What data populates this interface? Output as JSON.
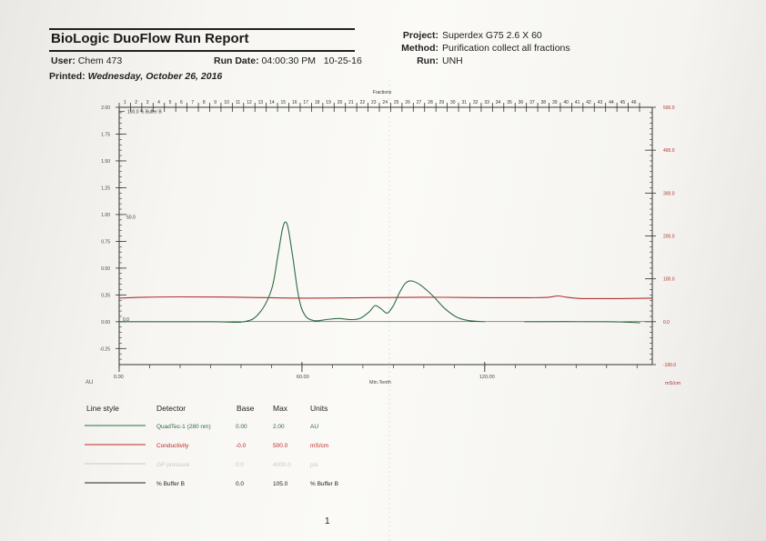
{
  "report": {
    "title": "BioLogic DuoFlow Run Report",
    "user_label": "User:",
    "user_value": "Chem 473",
    "run_date_label": "Run Date:",
    "run_date_value": "04:00:30 PM   10-25-16",
    "printed_label": "Printed:",
    "printed_value": "Wednesday, October 26, 2016",
    "project_label": "Project:",
    "project_value": "Superdex G75 2.6 X 60",
    "method_label": "Method:",
    "method_value": "Purification collect all fractions",
    "run_label": "Run:",
    "run_value": "UNH",
    "page_number": "1"
  },
  "chart_data": {
    "type": "line",
    "fractions_label": "Fractions",
    "fractions": [
      "1",
      "2",
      "3",
      "4",
      "5",
      "6",
      "7",
      "8",
      "9",
      "10",
      "11",
      "12",
      "13",
      "14",
      "15",
      "16",
      "17",
      "18",
      "19",
      "20",
      "21",
      "22",
      "23",
      "24",
      "25",
      "26",
      "27",
      "28",
      "29",
      "30",
      "31",
      "32",
      "33",
      "34",
      "35",
      "36",
      "37",
      "38",
      "39",
      "40",
      "41",
      "42",
      "43",
      "44",
      "45",
      "46"
    ],
    "xlabel": "Min.Tenth",
    "xlim": [
      0,
      175
    ],
    "x_ticks": [
      "0.00",
      "60.00",
      "120.00"
    ],
    "x_tick_values": [
      0,
      60,
      120
    ],
    "left_axis": {
      "unit": "AU",
      "ylim": [
        -0.4,
        2.0
      ],
      "ticks": [
        "-0.25",
        "0.00",
        "0.25",
        "0.50",
        "0.75",
        "1.00",
        "1.25",
        "1.50",
        "1.75",
        "2.00"
      ],
      "tick_values": [
        -0.25,
        0,
        0.25,
        0.5,
        0.75,
        1.0,
        1.25,
        1.5,
        1.75,
        2.0
      ]
    },
    "right_axis": {
      "unit": "mS/cm",
      "ylim": [
        -100,
        500
      ],
      "ticks": [
        "-100.0",
        "0.0",
        "100.0",
        "200.0",
        "300.0",
        "400.0",
        "500.0"
      ],
      "tick_values": [
        -100,
        0,
        100,
        200,
        300,
        400,
        500
      ]
    },
    "annotations": {
      "buffer_top": "100.0 %  Buffer B",
      "buffer_mid": "50.0",
      "buffer_zero": "0.0"
    },
    "series": [
      {
        "name": "QuadTec-1 (280 nm)",
        "color": "#2e6b43",
        "axis": "left",
        "points": [
          [
            0,
            0
          ],
          [
            30,
            0
          ],
          [
            41,
            0.0
          ],
          [
            46,
            0.08
          ],
          [
            50,
            0.3
          ],
          [
            52,
            0.6
          ],
          [
            53.5,
            0.85
          ],
          [
            54.5,
            0.93
          ],
          [
            55.5,
            0.87
          ],
          [
            57,
            0.6
          ],
          [
            59,
            0.22
          ],
          [
            61,
            0.06
          ],
          [
            64,
            0.01
          ],
          [
            68,
            0.02
          ],
          [
            72,
            0.03
          ],
          [
            76,
            0.02
          ],
          [
            79,
            0.03
          ],
          [
            82,
            0.09
          ],
          [
            84,
            0.15
          ],
          [
            86,
            0.12
          ],
          [
            88,
            0.08
          ],
          [
            90,
            0.15
          ],
          [
            92,
            0.27
          ],
          [
            94,
            0.36
          ],
          [
            96,
            0.38
          ],
          [
            99,
            0.34
          ],
          [
            103,
            0.24
          ],
          [
            107,
            0.12
          ],
          [
            111,
            0.04
          ],
          [
            115,
            0.01
          ],
          [
            120,
            0
          ]
        ]
      },
      {
        "name": "QuadTec-1 (280 nm) tail",
        "color": "#2e6b43",
        "axis": "left",
        "points": [
          [
            133,
            0
          ],
          [
            160,
            0
          ],
          [
            171,
            -0.01
          ]
        ]
      },
      {
        "name": "Conductivity",
        "color": "#b03030",
        "axis": "right",
        "points": [
          [
            0,
            55
          ],
          [
            8,
            57
          ],
          [
            20,
            58
          ],
          [
            40,
            57
          ],
          [
            60,
            55
          ],
          [
            80,
            56
          ],
          [
            100,
            57
          ],
          [
            120,
            56
          ],
          [
            135,
            56
          ],
          [
            141,
            57
          ],
          [
            144,
            60
          ],
          [
            147,
            57
          ],
          [
            152,
            54
          ],
          [
            165,
            54
          ],
          [
            175,
            55
          ]
        ]
      },
      {
        "name": "% Buffer B",
        "color": "#222222",
        "axis": "left",
        "points": [
          [
            0,
            0
          ],
          [
            175,
            0
          ]
        ]
      }
    ],
    "legend_headers": {
      "style": "Line style",
      "detector": "Detector",
      "base": "Base",
      "max": "Max",
      "units": "Units"
    },
    "legend_rows": [
      {
        "detector": "QuadTec-1 (280 nm)",
        "base": "0.00",
        "max": "2.00",
        "units": "AU",
        "color": "#2e6b43"
      },
      {
        "detector": "Conductivity",
        "base": "-0.0",
        "max": "500.0",
        "units": "mS/cm",
        "color": "#c02828"
      },
      {
        "detector": "GP pressure",
        "base": "0.0",
        "max": "4000.0",
        "units": "psi",
        "color": "#c8c8c4"
      },
      {
        "detector": "% Buffer B",
        "base": "0.0",
        "max": "105.0",
        "units": "% Buffer B",
        "color": "#222222"
      }
    ]
  }
}
